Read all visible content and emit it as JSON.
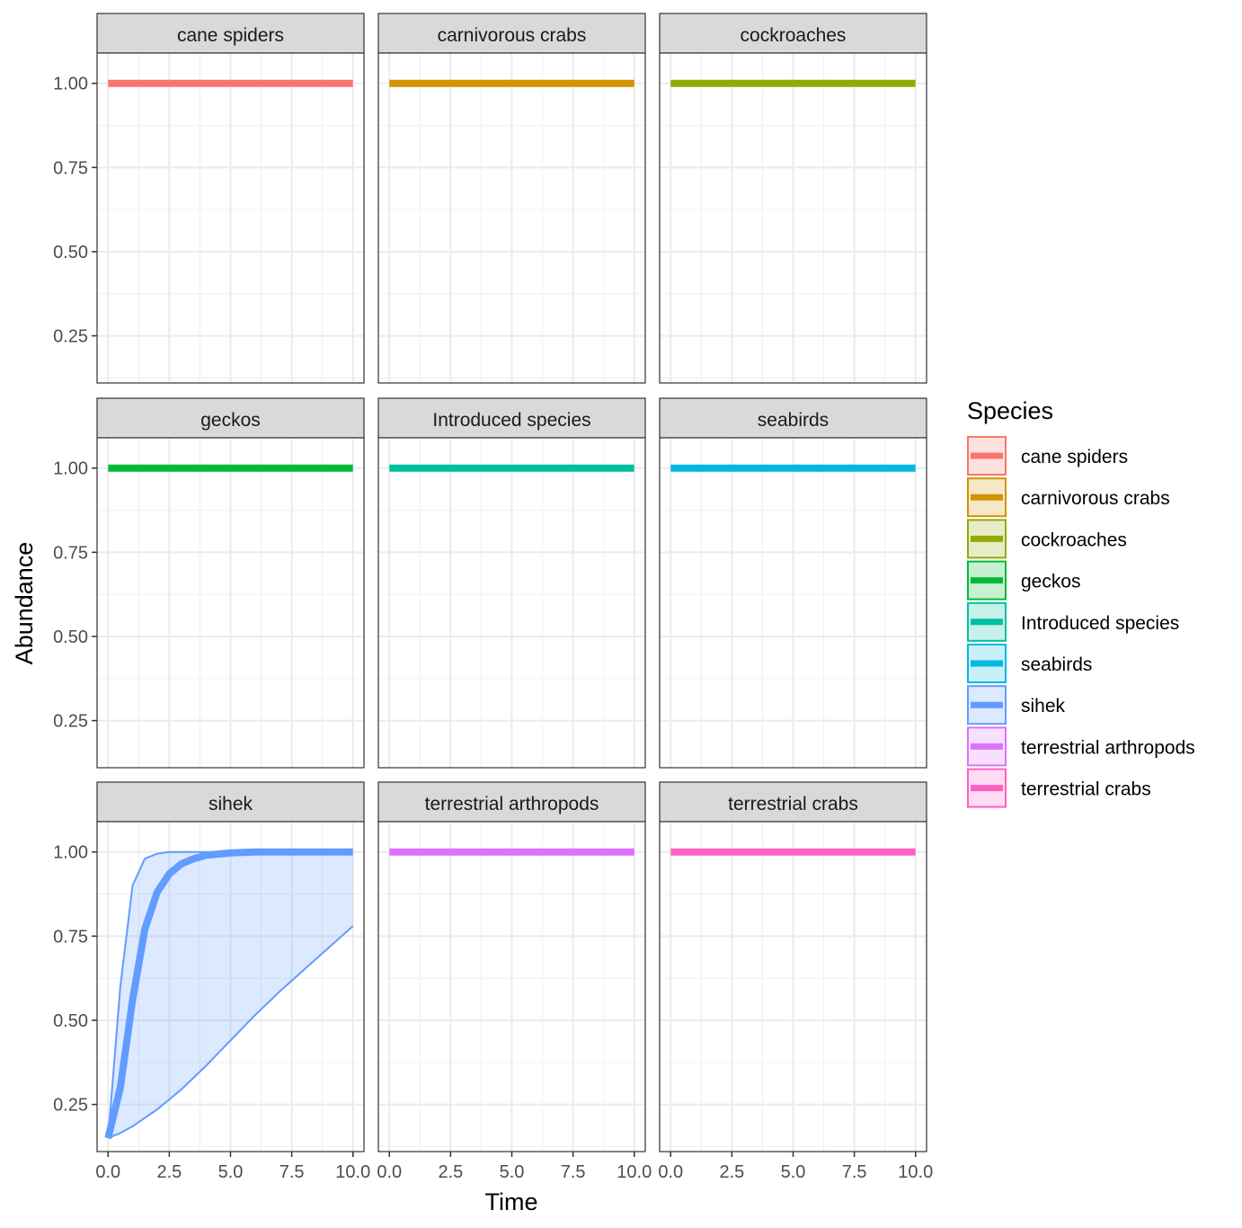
{
  "chart_data": {
    "type": "line",
    "title": "",
    "xlabel": "Time",
    "ylabel": "Abundance",
    "xlim": [
      -0.45,
      10.45
    ],
    "ylim": [
      0.11,
      1.09
    ],
    "x_ticks": [
      0,
      2.5,
      5,
      7.5,
      10
    ],
    "x_tick_labels": [
      "0.0",
      "2.5",
      "5.0",
      "7.5",
      "10.0"
    ],
    "y_ticks": [
      0.25,
      0.5,
      0.75,
      1.0
    ],
    "y_tick_labels": [
      "0.25",
      "0.50",
      "0.75",
      "1.00"
    ],
    "grid": true,
    "facets": "3x3",
    "legend": {
      "title": "Species",
      "placement": "right",
      "entries": [
        "cane spiders",
        "carnivorous crabs",
        "cockroaches",
        "geckos",
        "Introduced species",
        "seabirds",
        "sihek",
        "terrestrial arthropods",
        "terrestrial crabs"
      ]
    },
    "series": [
      {
        "name": "cane spiders",
        "color": "#F8766D",
        "x": [
          0,
          10
        ],
        "y": [
          1.0,
          1.0
        ]
      },
      {
        "name": "carnivorous crabs",
        "color": "#D39200",
        "x": [
          0,
          10
        ],
        "y": [
          1.0,
          1.0
        ]
      },
      {
        "name": "cockroaches",
        "color": "#93AA00",
        "x": [
          0,
          10
        ],
        "y": [
          1.0,
          1.0
        ]
      },
      {
        "name": "geckos",
        "color": "#00BA38",
        "x": [
          0,
          10
        ],
        "y": [
          1.0,
          1.0
        ]
      },
      {
        "name": "Introduced species",
        "color": "#00C19F",
        "x": [
          0,
          10
        ],
        "y": [
          1.0,
          1.0
        ]
      },
      {
        "name": "seabirds",
        "color": "#00B9E3",
        "x": [
          0,
          10
        ],
        "y": [
          1.0,
          1.0
        ]
      },
      {
        "name": "sihek",
        "color": "#619CFF",
        "x": [
          0,
          0.5,
          1,
          1.5,
          2,
          2.5,
          3,
          3.5,
          4,
          5,
          6,
          7,
          8,
          9,
          10
        ],
        "y": [
          0.15,
          0.3,
          0.56,
          0.77,
          0.88,
          0.935,
          0.965,
          0.98,
          0.99,
          0.997,
          1.0,
          1.0,
          1.0,
          1.0,
          1.0
        ],
        "lower": [
          0.15,
          0.165,
          0.185,
          0.21,
          0.235,
          0.265,
          0.295,
          0.33,
          0.365,
          0.44,
          0.515,
          0.585,
          0.65,
          0.715,
          0.78
        ],
        "upper": [
          0.15,
          0.6,
          0.9,
          0.98,
          0.995,
          1.0,
          1.0,
          1.0,
          1.0,
          1.0,
          1.0,
          1.0,
          1.0,
          1.0,
          1.0
        ]
      },
      {
        "name": "terrestrial arthropods",
        "color": "#DB72FB",
        "x": [
          0,
          10
        ],
        "y": [
          1.0,
          1.0
        ]
      },
      {
        "name": "terrestrial crabs",
        "color": "#FF61C3",
        "x": [
          0,
          10
        ],
        "y": [
          1.0,
          1.0
        ]
      }
    ]
  }
}
